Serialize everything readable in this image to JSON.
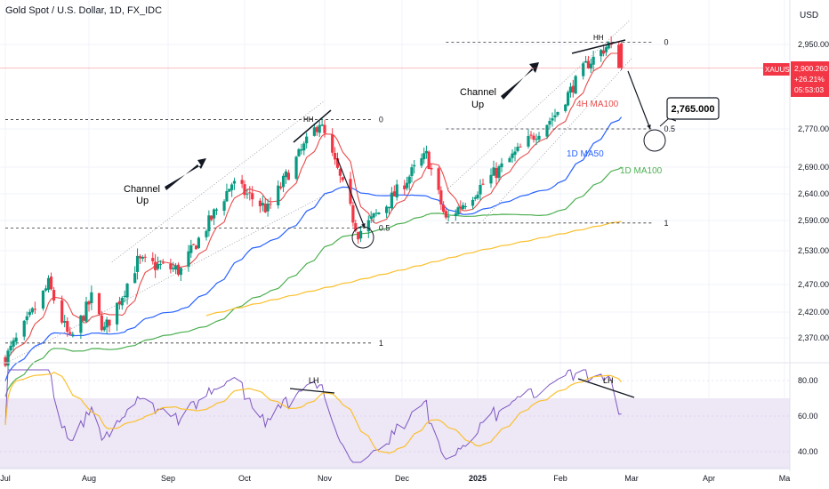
{
  "header": {
    "title": "Gold Spot / U.S. Dollar, 1D, FX_IDC",
    "currency": "USD"
  },
  "price_tag": {
    "symbol": "XAUUSD",
    "price": "2,900.260",
    "change": "+26.21%",
    "countdown": "05:53:03"
  },
  "annotations": {
    "channel_up_1": [
      "Channel",
      "Up"
    ],
    "channel_up_2": [
      "Channel",
      "Up"
    ],
    "hh": "HH",
    "lh": "LH",
    "ma_4h100": "4H MA100",
    "ma_1d50": "1D MA50",
    "ma_1d100": "1D MA100",
    "target_box": "2,765.000",
    "fib_0": "0",
    "fib_05": "0.5",
    "fib_1": "1"
  },
  "colors": {
    "up": "#089981",
    "down": "#f23645",
    "ma_4h100": "#e84b4b",
    "ma_1d50": "#2962ff",
    "ma_1d100": "#4caf50",
    "ma_200": "#fbc02d",
    "rsi": "#7e57c2",
    "rsi_ma": "#fbc02d",
    "rsi_band": "#ede7f6"
  },
  "chart_data": {
    "type": "candlestick",
    "x_ticks": [
      "Jul",
      "Aug",
      "Sep",
      "Oct",
      "Nov",
      "Dec",
      "2025",
      "Feb",
      "Mar",
      "Apr",
      "Ma"
    ],
    "y_ticks": [
      2370,
      2420,
      2470,
      2530,
      2590,
      2640,
      2690,
      2770,
      2950
    ],
    "y_tick_labels": [
      "2,370.000",
      "2,420.000",
      "2,470.000",
      "2,530.000",
      "2,590.000",
      "2,640.000",
      "2,690.000",
      "2,770.000",
      "2,950.000"
    ],
    "rsi_ticks": [
      40,
      60,
      80
    ],
    "rsi_tick_labels": [
      "40.00",
      "60.00",
      "80.00"
    ],
    "close_anchors": [
      {
        "date": "2024-07-01",
        "close": 2330
      },
      {
        "date": "2024-07-17",
        "close": 2470
      },
      {
        "date": "2024-07-25",
        "close": 2365
      },
      {
        "date": "2024-08-02",
        "close": 2445
      },
      {
        "date": "2024-08-07",
        "close": 2385
      },
      {
        "date": "2024-08-20",
        "close": 2510
      },
      {
        "date": "2024-09-06",
        "close": 2495
      },
      {
        "date": "2024-09-26",
        "close": 2660
      },
      {
        "date": "2024-10-10",
        "close": 2610
      },
      {
        "date": "2024-10-30",
        "close": 2785
      },
      {
        "date": "2024-11-14",
        "close": 2565
      },
      {
        "date": "2024-11-25",
        "close": 2620
      },
      {
        "date": "2024-12-11",
        "close": 2715
      },
      {
        "date": "2024-12-19",
        "close": 2590
      },
      {
        "date": "2025-01-10",
        "close": 2690
      },
      {
        "date": "2025-01-30",
        "close": 2800
      },
      {
        "date": "2025-02-11",
        "close": 2905
      },
      {
        "date": "2025-02-20",
        "close": 2950
      },
      {
        "date": "2025-02-25",
        "close": 2900
      }
    ],
    "fib_levels": [
      {
        "name": "channel-1-fib",
        "start": "2024-07-01",
        "end": "2024-11-19",
        "levels": [
          {
            "label": "0",
            "value": 2790
          },
          {
            "label": "0.5",
            "value": 2575
          },
          {
            "label": "1",
            "value": 2360
          }
        ]
      },
      {
        "name": "channel-2-fib",
        "start": "2024-12-19",
        "end": "2025-02-25",
        "levels": [
          {
            "label": "0",
            "value": 2955
          },
          {
            "label": "0.5",
            "value": 2770
          },
          {
            "label": "1",
            "value": 2585
          }
        ]
      }
    ],
    "target": 2765,
    "rsi_range": [
      33,
      88
    ]
  }
}
